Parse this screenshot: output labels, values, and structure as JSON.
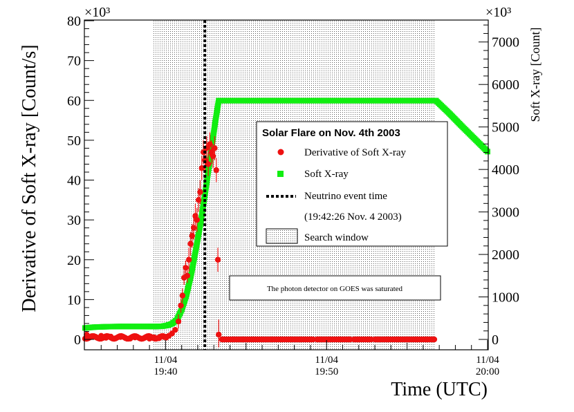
{
  "chart_data": {
    "type": "scatter",
    "title": "Solar Flare on Nov. 4th 2003",
    "xlabel": "Time (UTC)",
    "ylabel": "Derivative of Soft X-ray [Count/s]",
    "y2label": "Soft X-ray [Count]",
    "x_unit": "minutes since 19:30 UTC",
    "xlim": [
      35,
      60
    ],
    "ylim": [
      0,
      80
    ],
    "y2lim": [
      0,
      7500
    ],
    "y_multiplier": "×10³",
    "y2_multiplier": "×10³",
    "x_ticks": [
      {
        "x": 40,
        "date": "11/04",
        "time": "19:40"
      },
      {
        "x": 50,
        "date": "11/04",
        "time": "19:50"
      },
      {
        "x": 60,
        "date": "11/04",
        "time": "20:00"
      }
    ],
    "y_ticks": [
      0,
      10,
      20,
      30,
      40,
      50,
      60,
      70,
      80
    ],
    "y2_ticks": [
      0,
      1000,
      2000,
      3000,
      4000,
      5000,
      6000,
      7000
    ],
    "search_window": {
      "start": 39.2,
      "end": 56.7,
      "label": "Search window"
    },
    "neutrino_event": {
      "time": 42.44,
      "label": "Neutrino event time",
      "detail": "(19:42:26 Nov. 4 2003)"
    },
    "annotation": "The photon detector on GOES was saturated",
    "series": [
      {
        "name": "Derivative of Soft X-ray",
        "color": "#ee1111",
        "axis": "left",
        "points": [
          {
            "x": 35.1,
            "y": 1.2
          },
          {
            "x": 35.4,
            "y": 0.8
          },
          {
            "x": 35.7,
            "y": 0.5
          },
          {
            "x": 36.0,
            "y": 0.9
          },
          {
            "x": 36.3,
            "y": 0.4
          },
          {
            "x": 36.6,
            "y": 0.7
          },
          {
            "x": 36.9,
            "y": 0.3
          },
          {
            "x": 37.2,
            "y": 0.6
          },
          {
            "x": 37.5,
            "y": 0.4
          },
          {
            "x": 37.8,
            "y": 0.2
          },
          {
            "x": 38.1,
            "y": 0.5
          },
          {
            "x": 38.4,
            "y": 0.3
          },
          {
            "x": 38.7,
            "y": 0.4
          },
          {
            "x": 39.0,
            "y": 0.2
          },
          {
            "x": 39.3,
            "y": 0.5
          },
          {
            "x": 39.6,
            "y": 0.3
          },
          {
            "x": 39.9,
            "y": 0.6
          },
          {
            "x": 40.2,
            "y": 0.9
          },
          {
            "x": 40.4,
            "y": 1.5
          },
          {
            "x": 40.6,
            "y": 2.4
          },
          {
            "x": 40.8,
            "y": 4.5
          },
          {
            "x": 40.95,
            "y": 8.5
          },
          {
            "x": 41.05,
            "y": 11.0
          },
          {
            "x": 41.15,
            "y": 15.5
          },
          {
            "x": 41.25,
            "y": 18.0
          },
          {
            "x": 41.35,
            "y": 16.0
          },
          {
            "x": 41.45,
            "y": 20.0
          },
          {
            "x": 41.55,
            "y": 24.0
          },
          {
            "x": 41.65,
            "y": 26.0
          },
          {
            "x": 41.75,
            "y": 28.0
          },
          {
            "x": 41.85,
            "y": 31.0
          },
          {
            "x": 41.95,
            "y": 30.0
          },
          {
            "x": 42.05,
            "y": 35.0
          },
          {
            "x": 42.15,
            "y": 37.0
          },
          {
            "x": 42.25,
            "y": 43.0
          },
          {
            "x": 42.35,
            "y": 47.0
          },
          {
            "x": 42.45,
            "y": 45.0
          },
          {
            "x": 42.55,
            "y": 48.0
          },
          {
            "x": 42.65,
            "y": 44.0
          },
          {
            "x": 42.75,
            "y": 49.0
          },
          {
            "x": 42.85,
            "y": 47.0
          },
          {
            "x": 42.95,
            "y": 46.0
          },
          {
            "x": 43.05,
            "y": 48.0
          },
          {
            "x": 43.15,
            "y": 42.5
          },
          {
            "x": 43.25,
            "y": 20.0
          },
          {
            "x": 43.3,
            "y": 1.2
          },
          {
            "x": 43.6,
            "y": 0
          },
          {
            "x": 44.2,
            "y": 0
          },
          {
            "x": 44.8,
            "y": 0
          },
          {
            "x": 45.4,
            "y": 0
          },
          {
            "x": 46.0,
            "y": 0
          },
          {
            "x": 46.6,
            "y": 0
          },
          {
            "x": 47.2,
            "y": 0
          },
          {
            "x": 47.8,
            "y": 0
          },
          {
            "x": 48.4,
            "y": 0
          },
          {
            "x": 49.0,
            "y": 0
          },
          {
            "x": 49.6,
            "y": 0
          },
          {
            "x": 50.2,
            "y": 0
          },
          {
            "x": 50.8,
            "y": 0
          },
          {
            "x": 51.4,
            "y": 0
          },
          {
            "x": 52.0,
            "y": 0
          },
          {
            "x": 52.6,
            "y": 0
          },
          {
            "x": 53.2,
            "y": 0
          },
          {
            "x": 53.8,
            "y": 0
          },
          {
            "x": 54.4,
            "y": 0
          },
          {
            "x": 55.0,
            "y": 0
          },
          {
            "x": 55.6,
            "y": 0
          },
          {
            "x": 56.2,
            "y": 0
          },
          {
            "x": 56.6,
            "y": 0
          }
        ]
      },
      {
        "name": "Soft X-ray",
        "color": "#11ee11",
        "axis": "right",
        "points": [
          {
            "x": 35.0,
            "y": 270
          },
          {
            "x": 35.6,
            "y": 290
          },
          {
            "x": 36.4,
            "y": 300
          },
          {
            "x": 37.2,
            "y": 305
          },
          {
            "x": 38.0,
            "y": 305
          },
          {
            "x": 38.8,
            "y": 305
          },
          {
            "x": 39.4,
            "y": 305
          },
          {
            "x": 39.8,
            "y": 310
          },
          {
            "x": 40.1,
            "y": 330
          },
          {
            "x": 40.4,
            "y": 370
          },
          {
            "x": 40.7,
            "y": 460
          },
          {
            "x": 41.0,
            "y": 700
          },
          {
            "x": 41.3,
            "y": 1050
          },
          {
            "x": 41.6,
            "y": 1550
          },
          {
            "x": 41.9,
            "y": 2150
          },
          {
            "x": 42.2,
            "y": 2800
          },
          {
            "x": 42.5,
            "y": 3550
          },
          {
            "x": 42.8,
            "y": 4350
          },
          {
            "x": 43.1,
            "y": 5150
          },
          {
            "x": 43.3,
            "y": 5620
          },
          {
            "x": 44.0,
            "y": 5620
          },
          {
            "x": 45.0,
            "y": 5620
          },
          {
            "x": 46.0,
            "y": 5620
          },
          {
            "x": 47.0,
            "y": 5620
          },
          {
            "x": 48.0,
            "y": 5620
          },
          {
            "x": 49.0,
            "y": 5620
          },
          {
            "x": 50.0,
            "y": 5620
          },
          {
            "x": 51.0,
            "y": 5620
          },
          {
            "x": 52.0,
            "y": 5620
          },
          {
            "x": 53.0,
            "y": 5620
          },
          {
            "x": 54.0,
            "y": 5620
          },
          {
            "x": 55.0,
            "y": 5620
          },
          {
            "x": 56.0,
            "y": 5620
          },
          {
            "x": 56.8,
            "y": 5620
          },
          {
            "x": 57.6,
            "y": 5330
          },
          {
            "x": 58.4,
            "y": 5020
          },
          {
            "x": 59.2,
            "y": 4720
          },
          {
            "x": 60.0,
            "y": 4420
          }
        ]
      }
    ]
  }
}
